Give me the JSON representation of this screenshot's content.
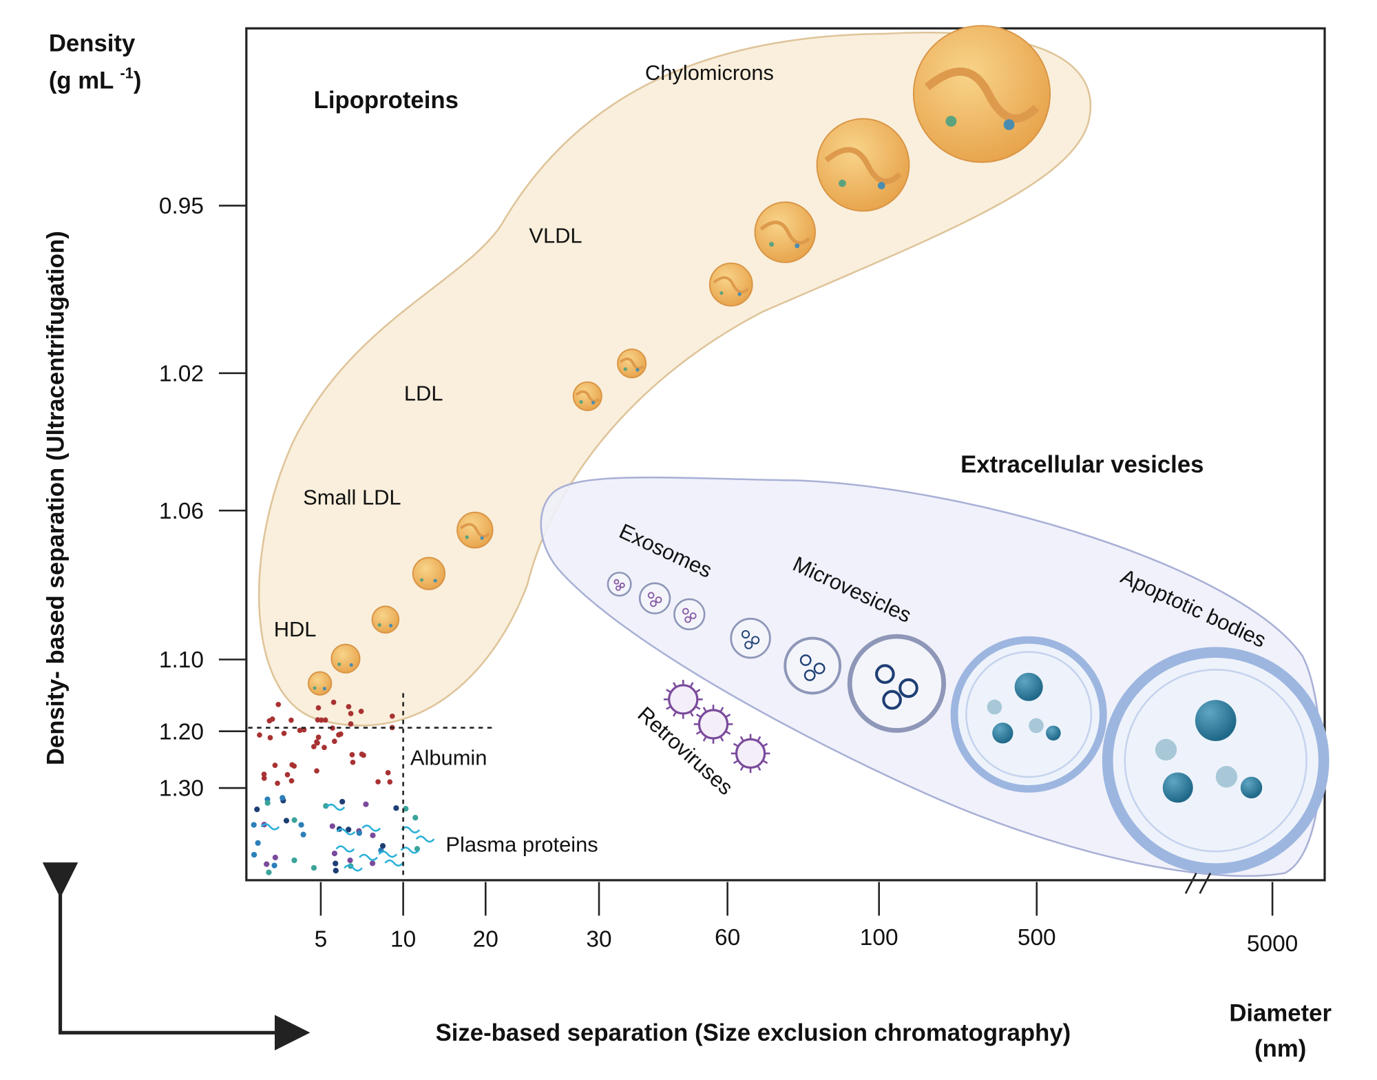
{
  "y_axis": {
    "title_line1": "Density",
    "title_line2": "(g mL ",
    "title_sup": "-1",
    "title_close": ")",
    "label": "Density- based separation (Ultracentrifugation)",
    "ticks": [
      "0.95",
      "1.02",
      "1.06",
      "1.10",
      "1.20",
      "1.30"
    ]
  },
  "x_axis": {
    "label": "Size-based separation (Size exclusion chromatography)",
    "ticks": [
      "5",
      "10",
      "20",
      "30",
      "60",
      "100",
      "500",
      "5000"
    ],
    "unit_line1": "Diameter",
    "unit_line2": "(nm)"
  },
  "groups": [
    "Lipoproteins",
    "Extracellular vesicles"
  ],
  "labels": [
    "Chylomicrons",
    "VLDL",
    "LDL",
    "Small LDL",
    "HDL",
    "Albumin",
    "Plasma proteins",
    "Exosomes",
    "Microvesicles",
    "Apoptotic bodies",
    "Retroviruses"
  ]
}
